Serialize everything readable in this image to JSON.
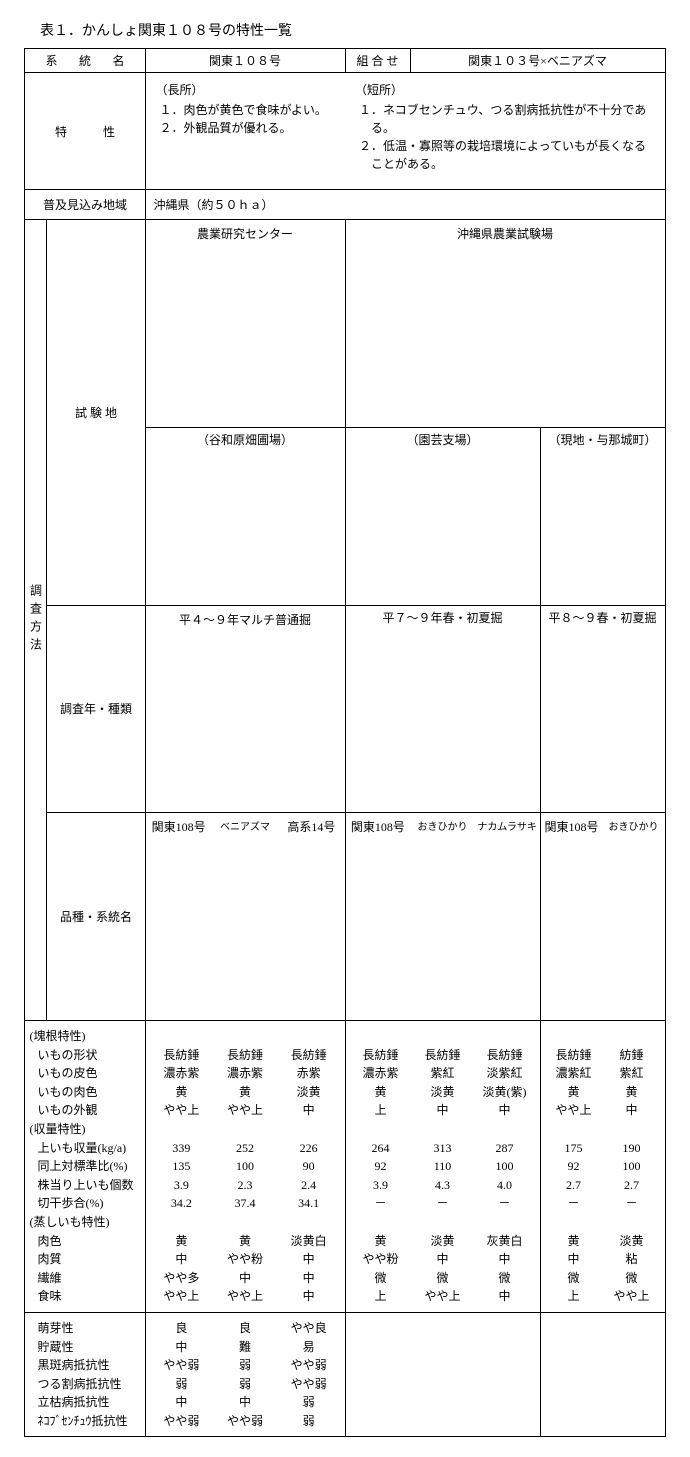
{
  "title": "表１．かんしょ関東１０８号の特性一覧",
  "hdr": {
    "lineage": "系　統　名",
    "lineage_val": "関東１０８号",
    "combo": "組 合 せ",
    "combo_val": "関東１０３号×ベニアズマ",
    "char": "特　　　性",
    "pros_head": "（長所）",
    "pros1": "１．肉色が黄色で食味がよい。",
    "pros2": "２．外観品質が優れる。",
    "cons_head": "（短所）",
    "cons1": "１．ネコブセンチュウ、つる割病抵抗性が不十分である。",
    "cons2": "２．低温・寡照等の栽培環境によっていもが長くなることがある。",
    "region": "普及見込み地域",
    "region_val": "沖縄県（約５０ｈａ）",
    "method": "調査方法",
    "site": "試 験 地",
    "center": "農業研究センター",
    "center_sub": "（谷和原畑圃場）",
    "okinawa": "沖縄県農業試験場",
    "okinawa_sub1": "（園芸支場）",
    "okinawa_sub2": "（現地・与那城町）",
    "year": "調査年・種類",
    "year1": "平４～９年マルチ普通掘",
    "year2": "平７～９年春・初夏掘",
    "year3": "平８～９春・初夏掘",
    "variety": "品種・系統名",
    "v1a": "関東108号",
    "v1b": "ベニアズマ",
    "v1c": "高系14号",
    "v2a": "関東108号",
    "v2b": "おきひかり",
    "v2c": "ナカムラサキ",
    "v3a": "関東108号",
    "v3b": "おきひかり"
  },
  "sections": {
    "tuber": "(塊根特性)",
    "yield": "(収量特性)",
    "steam": "(蒸しいも特性)"
  },
  "rows": {
    "shape": {
      "l": "いもの形状",
      "a": [
        "長紡錘",
        "長紡錘",
        "長紡錘"
      ],
      "b": [
        "長紡錘",
        "長紡錘",
        "長紡錘"
      ],
      "c": [
        "長紡錘",
        "紡錘"
      ]
    },
    "skin": {
      "l": "いもの皮色",
      "a": [
        "濃赤紫",
        "濃赤紫",
        "赤紫"
      ],
      "b": [
        "濃赤紫",
        "紫紅",
        "淡紫紅"
      ],
      "c": [
        "濃紫紅",
        "紫紅"
      ]
    },
    "flesh": {
      "l": "いもの肉色",
      "a": [
        "黄",
        "黄",
        "淡黄"
      ],
      "b": [
        "黄",
        "淡黄",
        "淡黄(紫)"
      ],
      "c": [
        "黄",
        "黄"
      ]
    },
    "appear": {
      "l": "いもの外観",
      "a": [
        "やや上",
        "やや上",
        "中"
      ],
      "b": [
        "上",
        "中",
        "中"
      ],
      "c": [
        "やや上",
        "中"
      ]
    },
    "uyield": {
      "l": "上いも収量(kg/a)",
      "a": [
        "339",
        "252",
        "226"
      ],
      "b": [
        "264",
        "313",
        "287"
      ],
      "c": [
        "175",
        "190"
      ]
    },
    "ratio": {
      "l": "同上対標準比(%)",
      "a": [
        "135",
        "100",
        "90"
      ],
      "b": [
        "92",
        "110",
        "100"
      ],
      "c": [
        "92",
        "100"
      ]
    },
    "count": {
      "l": "株当り上いも個数",
      "a": [
        "3.9",
        "2.3",
        "2.4"
      ],
      "b": [
        "3.9",
        "4.3",
        "4.0"
      ],
      "c": [
        "2.7",
        "2.7"
      ]
    },
    "dry": {
      "l": "切干歩合(%)",
      "a": [
        "34.2",
        "37.4",
        "34.1"
      ],
      "b": [
        "－",
        "－",
        "－"
      ],
      "c": [
        "－",
        "－"
      ]
    },
    "scolor": {
      "l": "肉色",
      "a": [
        "黄",
        "黄",
        "淡黄白"
      ],
      "b": [
        "黄",
        "淡黄",
        "灰黄白"
      ],
      "c": [
        "黄",
        "淡黄"
      ]
    },
    "texture": {
      "l": "肉質",
      "a": [
        "中",
        "やや粉",
        "中"
      ],
      "b": [
        "やや粉",
        "中",
        "中"
      ],
      "c": [
        "中",
        "粘"
      ]
    },
    "fiber": {
      "l": "繊維",
      "a": [
        "やや多",
        "中",
        "中"
      ],
      "b": [
        "微",
        "微",
        "微"
      ],
      "c": [
        "微",
        "微"
      ]
    },
    "taste": {
      "l": "食味",
      "a": [
        "やや上",
        "やや上",
        "中"
      ],
      "b": [
        "上",
        "やや上",
        "中"
      ],
      "c": [
        "上",
        "やや上"
      ]
    }
  },
  "rows2": {
    "sprout": {
      "l": "萌芽性",
      "a": [
        "良",
        "良",
        "やや良"
      ]
    },
    "storage": {
      "l": "貯蔵性",
      "a": [
        "中",
        "難",
        "易"
      ]
    },
    "black": {
      "l": "黒斑病抵抗性",
      "a": [
        "やや弱",
        "弱",
        "やや弱"
      ]
    },
    "fusarium": {
      "l": "つる割病抵抗性",
      "a": [
        "弱",
        "弱",
        "やや弱"
      ]
    },
    "soil": {
      "l": "立枯病抵抗性",
      "a": [
        "中",
        "中",
        "弱"
      ]
    },
    "nematode": {
      "l": "ﾈｺﾌﾞｾﾝﾁｭｳ抵抗性",
      "a": [
        "やや弱",
        "やや弱",
        "弱"
      ]
    }
  }
}
